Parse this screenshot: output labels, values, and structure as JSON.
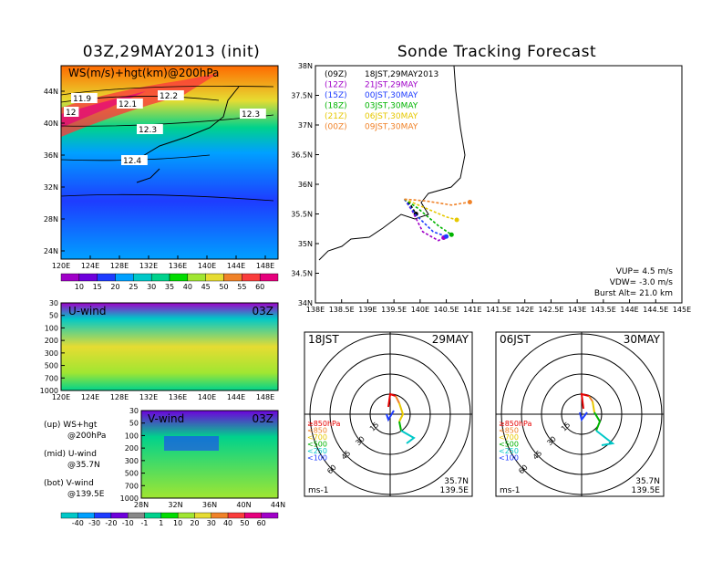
{
  "left_title": "03Z,29MAY2013 (init)",
  "right_title": "Sonde Tracking Forecast",
  "ws_map": {
    "label": "WS(m/s)+hgt(km)@200hPa",
    "lat_ticks": [
      "44N",
      "40N",
      "36N",
      "32N",
      "28N",
      "24N"
    ],
    "lon_ticks": [
      "120E",
      "124E",
      "128E",
      "132E",
      "136E",
      "140E",
      "144E",
      "148E"
    ],
    "contour_labels": [
      "11.9",
      "12",
      "12.1",
      "12.2",
      "12.3",
      "12.3",
      "12.4"
    ]
  },
  "ws_colorbar": {
    "ticks": [
      "10",
      "15",
      "20",
      "25",
      "30",
      "35",
      "40",
      "45",
      "50",
      "55",
      "60"
    ],
    "colors": [
      "#a000c8",
      "#6e00dc",
      "#1e3cff",
      "#00a0ff",
      "#00c8c8",
      "#00d28c",
      "#00dc00",
      "#a0e632",
      "#e6dc32",
      "#f08228",
      "#fa3c3c",
      "#e6007d"
    ]
  },
  "u_panel": {
    "label": "U-wind",
    "time": "03Z",
    "levels": [
      "30",
      "50",
      "100",
      "200",
      "300",
      "500",
      "700",
      "1000"
    ],
    "lon_ticks": [
      "120E",
      "124E",
      "128E",
      "132E",
      "136E",
      "140E",
      "144E",
      "148E"
    ]
  },
  "v_panel": {
    "label": "V-wind",
    "time": "03Z",
    "levels": [
      "30",
      "50",
      "100",
      "200",
      "300",
      "500",
      "700",
      "1000"
    ],
    "lat_ticks": [
      "28N",
      "32N",
      "36N",
      "40N",
      "44N"
    ]
  },
  "legend_text": [
    {
      "a": "(up) WS+hgt",
      "b": "@200hPa"
    },
    {
      "a": "(mid) U-wind",
      "b": "@35.7N"
    },
    {
      "a": "(bot) V-wind",
      "b": "@139.5E"
    }
  ],
  "wind_colorbar": {
    "ticks": [
      "-40",
      "-30",
      "-20",
      "-10",
      "-1",
      "1",
      "10",
      "20",
      "30",
      "40",
      "50",
      "60"
    ]
  },
  "tracking": {
    "lat_ticks": [
      "38N",
      "37.5N",
      "37N",
      "36.5N",
      "36N",
      "35.5N",
      "35N",
      "34.5N",
      "34N"
    ],
    "lon_ticks": [
      "138E",
      "138.5E",
      "139E",
      "139.5E",
      "140E",
      "140.5E",
      "141E",
      "141.5E",
      "142E",
      "142.5E",
      "143E",
      "143.5E",
      "144E",
      "144.5E",
      "145E"
    ],
    "legend": [
      {
        "z": "(09Z)",
        "jst": "18JST,29MAY2013",
        "color": "#000000"
      },
      {
        "z": "(12Z)",
        "jst": "21JST,29MAY",
        "color": "#a000c8"
      },
      {
        "z": "(15Z)",
        "jst": "00JST,30MAY",
        "color": "#1e3cff"
      },
      {
        "z": "(18Z)",
        "jst": "03JST,30MAY",
        "color": "#00b400"
      },
      {
        "z": "(21Z)",
        "jst": "06JST,30MAY",
        "color": "#e6c800"
      },
      {
        "z": "(00Z)",
        "jst": "09JST,30MAY",
        "color": "#f08228"
      }
    ],
    "params": {
      "vup": "VUP= 4.5 m/s",
      "vdw": "VDW= -3.0 m/s",
      "burst": "Burst Alt= 21.0 km"
    }
  },
  "hodo_left": {
    "left": "18JST",
    "right": "29MAY",
    "unit": "ms-1",
    "lat": "35.7N",
    "lon": "139.5E"
  },
  "hodo_right": {
    "left": "06JST",
    "right": "30MAY",
    "unit": "ms-1",
    "lat": "35.7N",
    "lon": "139.5E"
  },
  "hodo_rings": [
    "15",
    "30",
    "45",
    "60"
  ],
  "hodo_levels": [
    {
      "t": "≥850hPa",
      "c": "#e60000"
    },
    {
      "t": "<850",
      "c": "#f08228"
    },
    {
      "t": "<700",
      "c": "#e6c800"
    },
    {
      "t": "<500",
      "c": "#00b400"
    },
    {
      "t": "<250",
      "c": "#00c8c8"
    },
    {
      "t": "<100",
      "c": "#1e3cff"
    }
  ],
  "chart_data": [
    {
      "type": "heatmap",
      "title": "WS(m/s)+hgt(km)@200hPa",
      "xlabel": "",
      "ylabel": "",
      "xlim": [
        120,
        150
      ],
      "ylim": [
        22,
        46
      ]
    },
    {
      "type": "heatmap",
      "title": "U-wind",
      "xlabel": "",
      "ylabel": "",
      "xlim": [
        120,
        150
      ],
      "ylim": [
        1000,
        30
      ]
    },
    {
      "type": "heatmap",
      "title": "V-wind",
      "xlabel": "",
      "ylabel": "",
      "xlim": [
        28,
        44
      ],
      "ylim": [
        1000,
        30
      ]
    },
    {
      "type": "line",
      "title": "Sonde Tracking Forecast",
      "xlim": [
        138,
        145
      ],
      "ylim": [
        34,
        38
      ],
      "series": [
        {
          "name": "(09Z) 18JST,29MAY2013",
          "x": [
            139.7,
            139.82,
            139.92
          ],
          "y": [
            35.75,
            35.65,
            35.5
          ]
        },
        {
          "name": "(12Z) 21JST,29MAY",
          "x": [
            139.7,
            139.85,
            140.05,
            140.35,
            140.45
          ],
          "y": [
            35.75,
            35.55,
            35.2,
            35.05,
            35.1
          ]
        },
        {
          "name": "(15Z) 00JST,30MAY",
          "x": [
            139.7,
            139.9,
            140.25,
            140.5
          ],
          "y": [
            35.75,
            35.5,
            35.2,
            35.12
          ]
        },
        {
          "name": "(18Z) 03JST,30MAY",
          "x": [
            139.7,
            139.95,
            140.35,
            140.6
          ],
          "y": [
            35.75,
            35.6,
            35.3,
            35.15
          ]
        },
        {
          "name": "(21Z) 06JST,30MAY",
          "x": [
            139.7,
            140.1,
            140.5,
            140.7
          ],
          "y": [
            35.75,
            35.6,
            35.45,
            35.4
          ]
        },
        {
          "name": "(00Z) 09JST,30MAY",
          "x": [
            139.7,
            140.1,
            140.6,
            140.95
          ],
          "y": [
            35.75,
            35.72,
            35.65,
            35.7
          ]
        }
      ]
    }
  ]
}
